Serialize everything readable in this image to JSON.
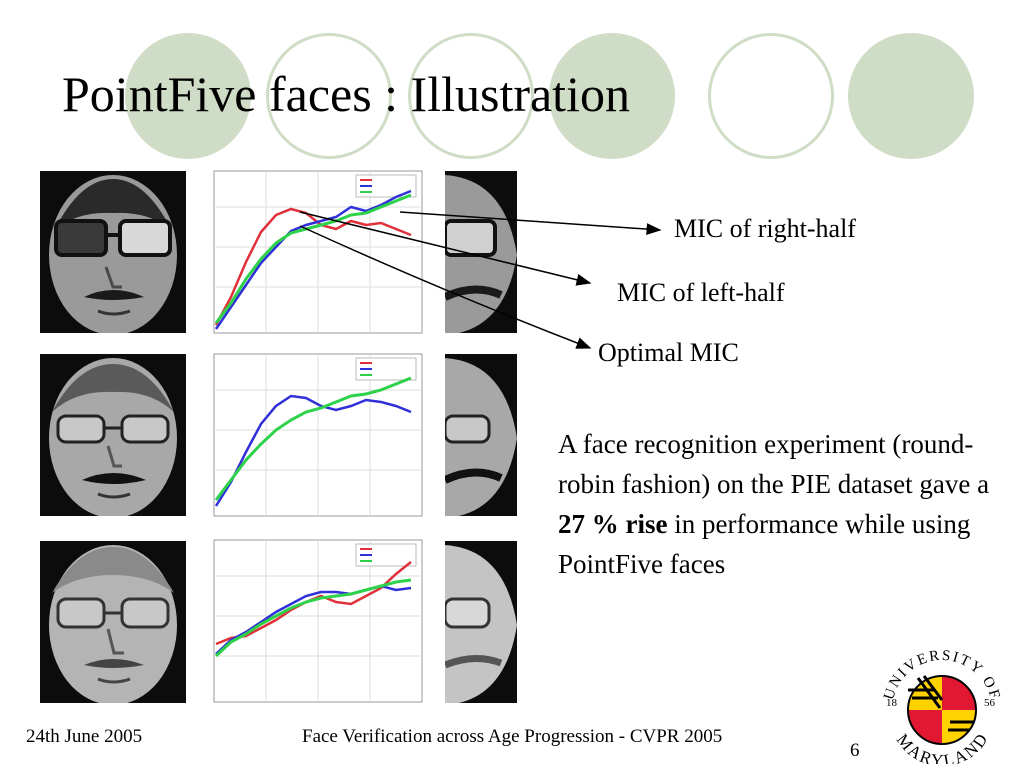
{
  "slide": {
    "title": "PointFive faces : Illustration",
    "callouts": [
      "MIC of right-half",
      "MIC of left-half",
      "Optimal MIC"
    ],
    "description": {
      "before": "A face recognition experiment (round-robin fashion) on the PIE dataset gave a ",
      "emphasis": "27 % rise",
      "after": " in performance while using PointFive faces"
    }
  },
  "footer": {
    "date": "24th June 2005",
    "presentation": "Face Verification across Age Progression - CVPR 2005",
    "page_number": "6"
  },
  "logo": {
    "text": "UNIVERSITY OF MARYLAND",
    "year_left": "18",
    "year_right": "56",
    "colors": [
      "#e21833",
      "#ffd200",
      "#000000",
      "#ffffff"
    ]
  },
  "colors": {
    "decor": "#cfdcc6",
    "series_right_half": "#e0303a",
    "series_left_half": "#3030d8",
    "series_optimal": "#2ed24a"
  },
  "icons": [
    "arrow-icon",
    "university-seal-icon"
  ]
}
